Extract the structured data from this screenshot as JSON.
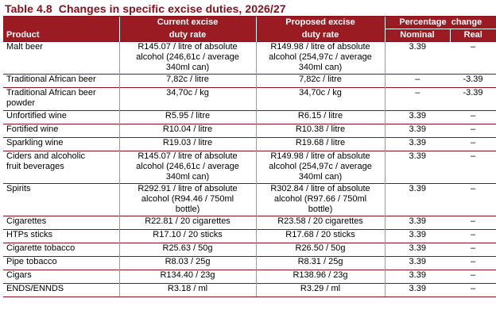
{
  "title": {
    "number": "Table 4.8",
    "text": "Changes in specific excise duties, 2026/27"
  },
  "headers": {
    "product": "Product",
    "current_line1": "Current excise",
    "current_line2": "duty rate",
    "proposed_line1": "Proposed excise",
    "proposed_line2": "duty rate",
    "percentage_change": "Percentage  change",
    "nominal": "Nominal",
    "real": "Real"
  },
  "rows": [
    {
      "product": [
        "Malt beer"
      ],
      "current": [
        "R145.07 / litre of absolute",
        "alcohol (246,61c / average",
        "340ml can)"
      ],
      "proposed": [
        "R149.98 / litre of absolute",
        "alcohol (254,97c / average",
        "340ml can)"
      ],
      "nominal": "3.39",
      "real": "–"
    },
    {
      "product": [
        "Traditional African beer"
      ],
      "current": [
        "7,82c / litre"
      ],
      "proposed": [
        "7,82c / litre"
      ],
      "nominal": "–",
      "real": "-3.39"
    },
    {
      "product": [
        "Traditional African beer",
        "powder"
      ],
      "current": [
        "34,70c / kg"
      ],
      "proposed": [
        "34,70c / kg"
      ],
      "nominal": "–",
      "real": "-3.39"
    },
    {
      "product": [
        "Unfortified wine"
      ],
      "current": [
        "R5.95 / litre"
      ],
      "proposed": [
        "R6.15 / litre"
      ],
      "nominal": "3.39",
      "real": "–"
    },
    {
      "product": [
        "Fortified wine"
      ],
      "current": [
        "R10.04 / litre"
      ],
      "proposed": [
        "R10.38 / litre"
      ],
      "nominal": "3.39",
      "real": "–"
    },
    {
      "product": [
        "Sparkling wine"
      ],
      "current": [
        "R19.03 / litre"
      ],
      "proposed": [
        "R19.68 / litre"
      ],
      "nominal": "3.39",
      "real": "–"
    },
    {
      "product": [
        "Ciders and alcoholic",
        "fruit beverages"
      ],
      "current": [
        "R145.07 / litre of absolute",
        "alcohol (246,61c / average",
        "340ml can)"
      ],
      "proposed": [
        "R149.98 / litre of absolute",
        "alcohol (254,97c / average",
        "340ml can)"
      ],
      "nominal": "3.39",
      "real": "–"
    },
    {
      "product": [
        "Spirits"
      ],
      "current": [
        "R292.91 / litre of absolute",
        "alcohol (R94.46 / 750ml",
        "bottle)"
      ],
      "proposed": [
        "R302.84 / litre of absolute",
        "alcohol (R97.66 / 750ml",
        "bottle)"
      ],
      "nominal": "3.39",
      "real": "–"
    },
    {
      "product": [
        "Cigarettes"
      ],
      "current": [
        "R22.81 / 20 cigarettes"
      ],
      "proposed": [
        "R23.58 / 20 cigarettes"
      ],
      "nominal": "3.39",
      "real": "–"
    },
    {
      "product": [
        "HTPs sticks"
      ],
      "current": [
        "R17.10 / 20 sticks"
      ],
      "proposed": [
        "R17.68 / 20 sticks"
      ],
      "nominal": "3.39",
      "real": "–"
    },
    {
      "product": [
        "Cigarette tobacco"
      ],
      "current": [
        "R25.63 / 50g"
      ],
      "proposed": [
        "R26.50 / 50g"
      ],
      "nominal": "3.39",
      "real": "–"
    },
    {
      "product": [
        "Pipe tobacco"
      ],
      "current": [
        "R8.03 / 25g"
      ],
      "proposed": [
        "R8.31 / 25g"
      ],
      "nominal": "3.39",
      "real": "–"
    },
    {
      "product": [
        "Cigars"
      ],
      "current": [
        "R134.40 / 23g"
      ],
      "proposed": [
        "R138.96 / 23g"
      ],
      "nominal": "3.39",
      "real": "–"
    },
    {
      "product": [
        "ENDS/ENNDS"
      ],
      "current": [
        "R3.18 / ml"
      ],
      "proposed": [
        "R3.29 / ml"
      ],
      "nominal": "3.39",
      "real": "–"
    }
  ]
}
